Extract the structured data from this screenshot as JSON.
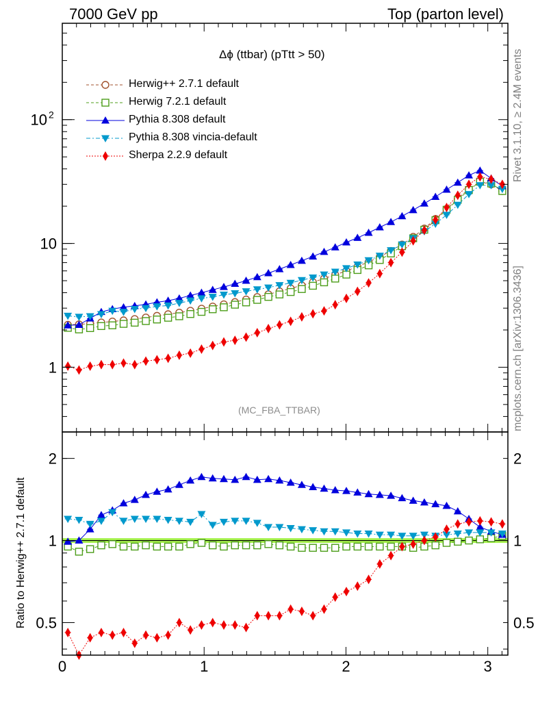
{
  "header": {
    "left": "7000 GeV pp",
    "right": "Top (parton level)"
  },
  "side": {
    "rivet": "Rivet 3.1.10, ≥ 2.4M events",
    "mcplots": "mcplots.cern.ch [arXiv:1306.3436]"
  },
  "chart_data": [
    {
      "type": "line",
      "panel": "main",
      "title": "Δϕ (ttbar) (pTtt > 50)",
      "watermark": "(MC_FBA_TTBAR)",
      "yscale": "log",
      "xlim": [
        0,
        3.1416
      ],
      "ylim": [
        0.3,
        600
      ],
      "x_ticks": [
        "0",
        "1",
        "2",
        "3"
      ],
      "y_ticks": [
        "1",
        "10",
        "10^2"
      ],
      "legend_position": "top-left",
      "x": [
        0.0393,
        0.1178,
        0.1963,
        0.2749,
        0.3534,
        0.432,
        0.5105,
        0.589,
        0.6676,
        0.7461,
        0.8247,
        0.9032,
        0.9817,
        1.0603,
        1.1388,
        1.2174,
        1.2959,
        1.3744,
        1.453,
        1.5315,
        1.6101,
        1.6886,
        1.7671,
        1.8457,
        1.9242,
        2.0028,
        2.0813,
        2.1598,
        2.2384,
        2.3169,
        2.3955,
        2.474,
        2.5525,
        2.6311,
        2.7096,
        2.7882,
        2.8667,
        2.9452,
        3.0238,
        3.1023
      ],
      "series": [
        {
          "name": "Herwig++ 2.7.1 default",
          "color": "#a0522d",
          "marker": "open-circle",
          "line": "dashed",
          "values": [
            2.2,
            2.22,
            2.25,
            2.3,
            2.34,
            2.39,
            2.45,
            2.52,
            2.6,
            2.68,
            2.76,
            2.86,
            2.97,
            3.09,
            3.22,
            3.36,
            3.52,
            3.69,
            3.88,
            4.1,
            4.33,
            4.58,
            4.87,
            5.2,
            5.57,
            6.0,
            6.5,
            7.1,
            7.8,
            8.7,
            9.8,
            11.3,
            13.2,
            15.8,
            19.0,
            23.0,
            27.5,
            31.5,
            30.0,
            26.5
          ]
        },
        {
          "name": "Herwig 7.2.1 default",
          "color": "#4c9d19",
          "marker": "open-square",
          "line": "dashed",
          "values": [
            2.08,
            2.02,
            2.07,
            2.15,
            2.18,
            2.24,
            2.29,
            2.36,
            2.43,
            2.51,
            2.58,
            2.69,
            2.8,
            2.94,
            3.05,
            3.2,
            3.34,
            3.5,
            3.7,
            3.87,
            4.05,
            4.28,
            4.55,
            4.85,
            5.2,
            5.6,
            6.1,
            6.65,
            7.35,
            8.3,
            9.5,
            11.0,
            12.9,
            15.4,
            18.7,
            22.5,
            27.0,
            31.5,
            30.5,
            26.5
          ]
        },
        {
          "name": "Pythia 8.308 default",
          "color": "#0000dd",
          "marker": "filled-triangle-up",
          "line": "solid",
          "values": [
            2.18,
            2.2,
            2.48,
            2.8,
            2.95,
            3.05,
            3.13,
            3.22,
            3.35,
            3.45,
            3.6,
            3.8,
            4.0,
            4.22,
            4.45,
            4.72,
            5.0,
            5.35,
            5.75,
            6.2,
            6.7,
            7.25,
            7.85,
            8.55,
            9.3,
            10.2,
            11.1,
            12.2,
            13.5,
            14.9,
            16.6,
            18.6,
            21.0,
            23.8,
            27.2,
            31.0,
            35.5,
            38.8,
            33.5,
            29.0
          ]
        },
        {
          "name": "Pythia 8.308 vincia-default",
          "color": "#0099cc",
          "marker": "filled-triangle-down",
          "line": "dashdot",
          "values": [
            2.6,
            2.55,
            2.58,
            2.68,
            2.85,
            2.8,
            2.95,
            3.0,
            3.1,
            3.15,
            3.3,
            3.45,
            3.6,
            3.7,
            3.85,
            3.95,
            4.1,
            4.25,
            4.4,
            4.6,
            4.8,
            5.05,
            5.3,
            5.6,
            5.9,
            6.3,
            6.75,
            7.3,
            7.95,
            8.8,
            9.8,
            11.0,
            12.5,
            14.4,
            17.0,
            20.5,
            25.0,
            29.5,
            29.5,
            27.5
          ]
        },
        {
          "name": "Sherpa 2.2.9 default",
          "color": "#ee0000",
          "marker": "filled-diamond",
          "line": "dotted",
          "values": [
            1.02,
            0.95,
            1.02,
            1.05,
            1.05,
            1.08,
            1.05,
            1.12,
            1.15,
            1.18,
            1.25,
            1.3,
            1.4,
            1.5,
            1.6,
            1.65,
            1.75,
            1.9,
            2.05,
            2.2,
            2.35,
            2.55,
            2.7,
            2.85,
            3.2,
            3.6,
            4.1,
            4.8,
            5.7,
            7.0,
            8.5,
            10.5,
            12.8,
            15.5,
            19.5,
            24.5,
            30.0,
            34.5,
            33.0,
            30.0
          ]
        }
      ]
    },
    {
      "type": "line",
      "panel": "ratio",
      "ylabel": "Ratio to Herwig++ 2.7.1 default",
      "yscale": "log",
      "xlim": [
        0,
        3.1416
      ],
      "ylim": [
        0.38,
        2.5
      ],
      "x_ticks": [
        "0",
        "1",
        "2",
        "3"
      ],
      "y_ticks": [
        "0.5",
        "1",
        "2"
      ],
      "band_color": "#a7f24e",
      "x": [
        0.0393,
        0.1178,
        0.1963,
        0.2749,
        0.3534,
        0.432,
        0.5105,
        0.589,
        0.6676,
        0.7461,
        0.8247,
        0.9032,
        0.9817,
        1.0603,
        1.1388,
        1.2174,
        1.2959,
        1.3744,
        1.453,
        1.5315,
        1.6101,
        1.6886,
        1.7671,
        1.8457,
        1.9242,
        2.0028,
        2.0813,
        2.1598,
        2.2384,
        2.3169,
        2.3955,
        2.474,
        2.5525,
        2.6311,
        2.7096,
        2.7882,
        2.8667,
        2.9452,
        3.0238,
        3.1023
      ],
      "series": [
        {
          "name": "Herwig 7.2.1 default",
          "color": "#4c9d19",
          "marker": "open-square",
          "line": "dashed",
          "values": [
            0.95,
            0.91,
            0.93,
            0.96,
            0.97,
            0.95,
            0.95,
            0.96,
            0.95,
            0.95,
            0.95,
            0.97,
            0.98,
            0.96,
            0.95,
            0.96,
            0.96,
            0.96,
            0.97,
            0.96,
            0.95,
            0.94,
            0.94,
            0.94,
            0.94,
            0.95,
            0.95,
            0.95,
            0.95,
            0.95,
            0.95,
            0.94,
            0.95,
            0.96,
            0.98,
            0.99,
            1.0,
            1.01,
            1.02,
            1.04
          ]
        },
        {
          "name": "Pythia 8.308 default",
          "color": "#0000dd",
          "marker": "filled-triangle-up",
          "line": "solid",
          "values": [
            0.99,
            1.0,
            1.1,
            1.24,
            1.29,
            1.37,
            1.41,
            1.47,
            1.51,
            1.54,
            1.6,
            1.66,
            1.71,
            1.69,
            1.68,
            1.67,
            1.71,
            1.67,
            1.68,
            1.66,
            1.63,
            1.6,
            1.57,
            1.55,
            1.53,
            1.52,
            1.5,
            1.48,
            1.47,
            1.46,
            1.43,
            1.4,
            1.38,
            1.36,
            1.34,
            1.28,
            1.2,
            1.12,
            1.08,
            1.05
          ]
        },
        {
          "name": "Pythia 8.308 vincia-default",
          "color": "#0099cc",
          "marker": "filled-triangle-down",
          "line": "dashdot",
          "values": [
            1.2,
            1.19,
            1.15,
            1.18,
            1.27,
            1.18,
            1.2,
            1.2,
            1.2,
            1.19,
            1.18,
            1.17,
            1.25,
            1.14,
            1.17,
            1.18,
            1.18,
            1.16,
            1.12,
            1.12,
            1.11,
            1.1,
            1.09,
            1.08,
            1.08,
            1.07,
            1.06,
            1.06,
            1.05,
            1.05,
            1.04,
            1.04,
            1.05,
            1.04,
            1.05,
            1.06,
            1.07,
            1.07,
            1.07,
            1.06
          ]
        },
        {
          "name": "Sherpa 2.2.9 default",
          "color": "#ee0000",
          "marker": "filled-diamond",
          "line": "dotted",
          "values": [
            0.46,
            0.38,
            0.44,
            0.46,
            0.45,
            0.46,
            0.42,
            0.45,
            0.44,
            0.45,
            0.5,
            0.47,
            0.49,
            0.5,
            0.49,
            0.49,
            0.48,
            0.53,
            0.53,
            0.53,
            0.56,
            0.55,
            0.53,
            0.56,
            0.62,
            0.65,
            0.68,
            0.72,
            0.82,
            0.88,
            0.95,
            0.97,
            1.0,
            1.03,
            1.1,
            1.15,
            1.17,
            1.18,
            1.17,
            1.15
          ]
        }
      ]
    }
  ]
}
